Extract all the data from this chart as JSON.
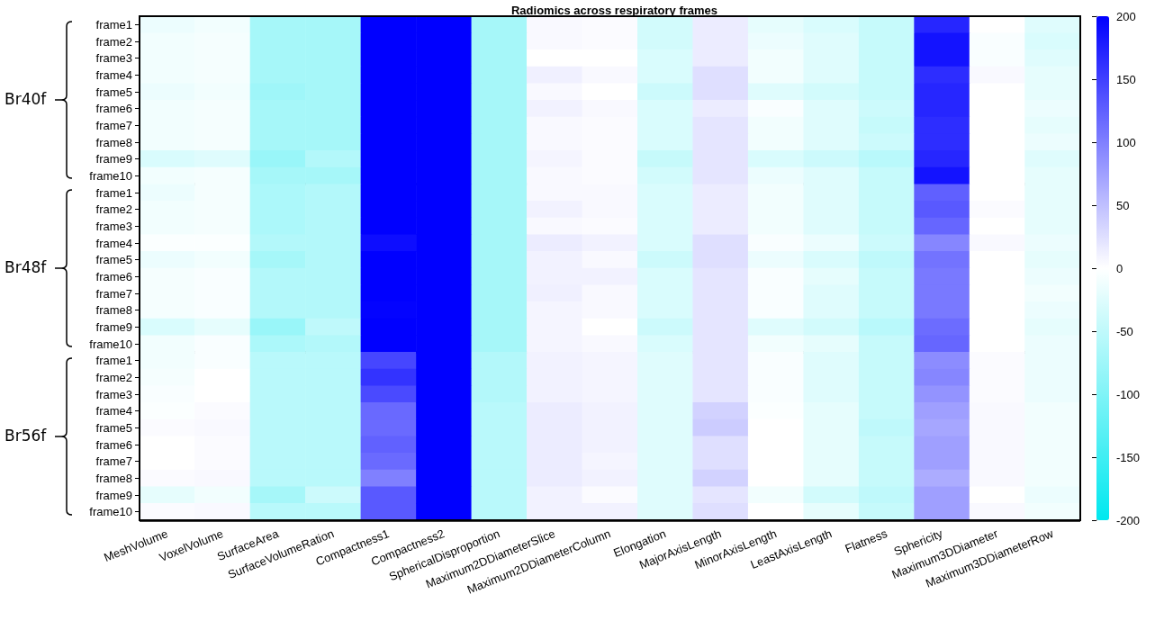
{
  "chart_data": {
    "type": "heatmap",
    "title": "Radiomics across respiratory frames",
    "categories": [
      "MeshVolume",
      "VoxelVolume",
      "SurfaceArea",
      "SurfaceVolumeRation",
      "Compactness1",
      "Compactness2",
      "SphericalDisproportion",
      "Maximum2DDiameterSlice",
      "Maximum2DDiameterColumn",
      "Elongation",
      "MajorAxisLength",
      "MinorAxisLength",
      "LeastAxisLength",
      "Flatness",
      "Sphericity",
      "Maximum3DDiameter",
      "Maximum3DDiameterRow"
    ],
    "y_categories": [
      "frame1",
      "frame2",
      "frame3",
      "frame4",
      "frame5",
      "frame6",
      "frame7",
      "frame8",
      "frame9",
      "frame10",
      "frame1",
      "frame2",
      "frame3",
      "frame4",
      "frame5",
      "frame6",
      "frame7",
      "frame8",
      "frame9",
      "frame10",
      "frame1",
      "frame2",
      "frame3",
      "frame4",
      "frame5",
      "frame6",
      "frame7",
      "frame8",
      "frame9",
      "frame10"
    ],
    "cells": [
      [
        -15,
        -10,
        -70,
        -70,
        200,
        200,
        -70,
        5,
        3,
        -35,
        15,
        -20,
        -30,
        -45,
        170,
        0,
        -25
      ],
      [
        -10,
        -8,
        -70,
        -70,
        200,
        200,
        -70,
        5,
        3,
        -35,
        15,
        -15,
        -25,
        -45,
        185,
        -5,
        -30
      ],
      [
        -10,
        -8,
        -70,
        -70,
        200,
        200,
        -70,
        0,
        0,
        -30,
        15,
        -10,
        -25,
        -45,
        185,
        -5,
        -25
      ],
      [
        -10,
        -8,
        -70,
        -70,
        200,
        200,
        -70,
        12,
        5,
        -30,
        25,
        -10,
        -25,
        -45,
        165,
        5,
        -20
      ],
      [
        -15,
        -10,
        -75,
        -70,
        200,
        200,
        -70,
        5,
        0,
        -40,
        25,
        -25,
        -35,
        -45,
        170,
        0,
        -20
      ],
      [
        -10,
        -8,
        -70,
        -70,
        200,
        200,
        -70,
        10,
        5,
        -30,
        15,
        -5,
        -25,
        -40,
        170,
        0,
        -15
      ],
      [
        -10,
        -8,
        -70,
        -70,
        200,
        200,
        -70,
        5,
        3,
        -30,
        20,
        -10,
        -25,
        -45,
        165,
        0,
        -20
      ],
      [
        -10,
        -8,
        -70,
        -70,
        200,
        200,
        -70,
        5,
        3,
        -30,
        20,
        -10,
        -25,
        -40,
        165,
        0,
        -15
      ],
      [
        -30,
        -25,
        -80,
        -60,
        200,
        200,
        -70,
        8,
        3,
        -45,
        20,
        -30,
        -40,
        -55,
        170,
        0,
        -25
      ],
      [
        -10,
        -8,
        -70,
        -70,
        200,
        200,
        -70,
        5,
        3,
        -35,
        20,
        -15,
        -25,
        -45,
        185,
        0,
        -20
      ],
      [
        -15,
        -8,
        -65,
        -60,
        200,
        200,
        -70,
        5,
        5,
        -30,
        15,
        -10,
        -25,
        -45,
        125,
        0,
        -20
      ],
      [
        -10,
        -8,
        -65,
        -60,
        200,
        200,
        -70,
        10,
        5,
        -30,
        15,
        -10,
        -25,
        -45,
        130,
        3,
        -20
      ],
      [
        -10,
        -8,
        -65,
        -60,
        200,
        200,
        -70,
        5,
        3,
        -30,
        15,
        -10,
        -25,
        -45,
        120,
        0,
        -20
      ],
      [
        -3,
        -3,
        -60,
        -60,
        190,
        200,
        -70,
        15,
        10,
        -30,
        25,
        -5,
        -15,
        -40,
        95,
        5,
        -15
      ],
      [
        -15,
        -10,
        -70,
        -60,
        200,
        200,
        -70,
        10,
        5,
        -40,
        25,
        -15,
        -30,
        -50,
        110,
        0,
        -20
      ],
      [
        -8,
        -5,
        -60,
        -60,
        200,
        200,
        -70,
        10,
        10,
        -30,
        20,
        -5,
        -20,
        -45,
        105,
        0,
        -15
      ],
      [
        -8,
        -5,
        -60,
        -60,
        200,
        200,
        -70,
        12,
        5,
        -30,
        20,
        -5,
        -25,
        -45,
        105,
        0,
        -10
      ],
      [
        -8,
        -5,
        -60,
        -60,
        198,
        200,
        -70,
        8,
        5,
        -30,
        20,
        -5,
        -25,
        -45,
        105,
        0,
        -15
      ],
      [
        -30,
        -20,
        -80,
        -50,
        200,
        200,
        -70,
        8,
        0,
        -40,
        20,
        -25,
        -35,
        -55,
        115,
        0,
        -20
      ],
      [
        -10,
        -5,
        -65,
        -60,
        200,
        200,
        -70,
        8,
        5,
        -30,
        20,
        -10,
        -20,
        -45,
        120,
        0,
        -15
      ],
      [
        -10,
        -5,
        -55,
        -55,
        145,
        200,
        -60,
        10,
        8,
        -25,
        20,
        -5,
        -25,
        -45,
        90,
        3,
        -15
      ],
      [
        -8,
        0,
        -55,
        -55,
        160,
        200,
        -60,
        10,
        8,
        -25,
        20,
        -5,
        -25,
        -45,
        95,
        3,
        -15
      ],
      [
        -5,
        0,
        -55,
        -55,
        142,
        200,
        -60,
        10,
        8,
        -25,
        20,
        -5,
        -25,
        -45,
        85,
        3,
        -15
      ],
      [
        -3,
        3,
        -55,
        -55,
        118,
        200,
        -55,
        15,
        10,
        -25,
        35,
        -3,
        -20,
        -45,
        75,
        5,
        -10
      ],
      [
        3,
        5,
        -55,
        -55,
        117,
        200,
        -55,
        15,
        10,
        -25,
        40,
        0,
        -20,
        -50,
        70,
        5,
        -10
      ],
      [
        0,
        3,
        -55,
        -55,
        124,
        200,
        -55,
        15,
        10,
        -25,
        25,
        0,
        -20,
        -45,
        75,
        5,
        -10
      ],
      [
        0,
        3,
        -55,
        -55,
        117,
        200,
        -55,
        15,
        8,
        -25,
        25,
        0,
        -20,
        -45,
        75,
        5,
        -10
      ],
      [
        3,
        5,
        -55,
        -55,
        100,
        200,
        -55,
        15,
        10,
        -25,
        35,
        0,
        -20,
        -45,
        65,
        5,
        -10
      ],
      [
        -20,
        -10,
        -70,
        -40,
        130,
        200,
        -55,
        10,
        3,
        -25,
        20,
        -10,
        -35,
        -50,
        75,
        0,
        -15
      ],
      [
        3,
        5,
        -55,
        -55,
        130,
        200,
        -55,
        10,
        10,
        -25,
        25,
        0,
        -20,
        -45,
        75,
        5,
        -10
      ]
    ],
    "clim": [
      -200,
      200
    ],
    "cticks": [
      -200,
      -150,
      -100,
      -50,
      0,
      50,
      100,
      150,
      200
    ],
    "annotations": [
      "Br40f",
      "Br48f",
      "Br56f"
    ]
  }
}
